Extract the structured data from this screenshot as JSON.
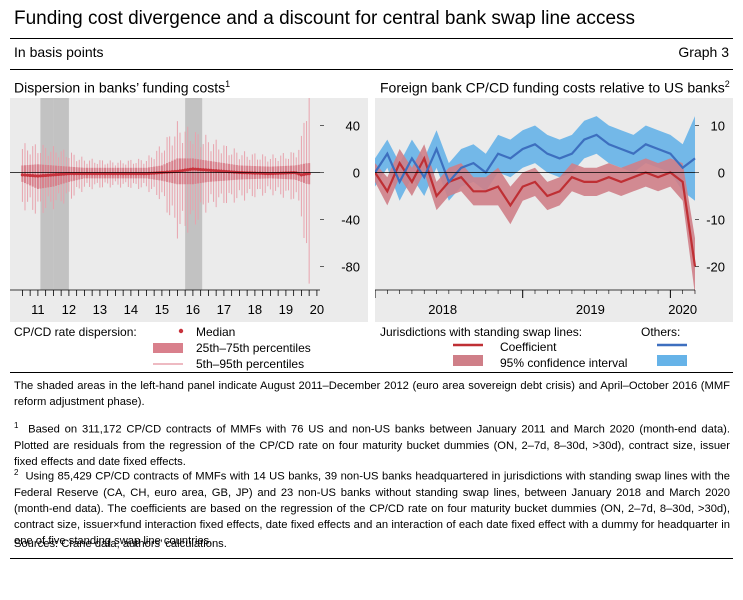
{
  "header": {
    "title": "Funding cost divergence and a discount for central bank swap line access",
    "subtitle": "In basis points",
    "graph_label": "Graph 3"
  },
  "left_panel": {
    "title": "Dispersion in banks’ funding costs",
    "title_sup": "1",
    "legend_heading": "CP/CD rate dispersion:",
    "legend_median": "Median",
    "legend_iqr": "25th–75th percentiles",
    "legend_p595": "5th–95th percentiles"
  },
  "right_panel": {
    "title": "Foreign bank CP/CD funding costs relative to US banks",
    "title_sup": "2",
    "legend_heading": "Jurisdictions with standing swap lines:",
    "legend_others": "Others:",
    "legend_coef": "Coefficient",
    "legend_ci": "95% confidence interval"
  },
  "notes": {
    "shaded": "The shaded areas in the left-hand panel indicate August 2011–December 2012 (euro area sovereign debt crisis) and April–October 2016 (MMF reform adjustment phase).",
    "fn1_num": "1",
    "fn1": "Based on 311,172 CP/CD contracts of MMFs with 76 US and non-US banks between January 2011 and March 2020 (month-end data). Plotted are residuals from the regression of the CP/CD rate on four maturity bucket dummies (ON, 2–7d, 8–30d, >30d), contract size, issuer fixed effects and date fixed effects.",
    "fn2_num": "2",
    "fn2": "Using 85,429 CP/CD contracts of MMFs with 14 US banks, 39 non-US banks headquartered in jurisdictions with standing swap lines with the Federal Reserve (CA, CH, euro area, GB, JP) and 23 non-US banks without standing swap lines, between January 2018 and March 2020 (month-end data). The coefficients are based on the regression of the CP/CD rate on four maturity bucket dummies (ON, 2–7d, 8–30d, >30d), contract size, issuer×fund interaction fixed effects, date fixed effects and an interaction of each date fixed effect with a dummy for headquarter in one of five standing swap line countries.",
    "sources": "Sources: Crane data; authors’ calculations."
  },
  "colors": {
    "panel_bg": "#ebebeb",
    "shade": "#c2c2c2",
    "median_red": "#c8323c",
    "iqr_pink": "#d9808c",
    "p595_pink": "#e8a3ad",
    "swap_red": "#bf2f34",
    "swap_ci": "#cf7f88",
    "others_blue": "#3d6fbf",
    "others_ci": "#66b3e8"
  },
  "chart_data": [
    {
      "type": "area",
      "title": "Dispersion in banks’ funding costs",
      "ylabel": "",
      "ylim": [
        -100,
        60
      ],
      "y_ticks": [
        40,
        0,
        -40,
        -80
      ],
      "x_range": [
        2010.6,
        2020.6
      ],
      "x_ticks": [
        "11",
        "12",
        "13",
        "14",
        "15",
        "16",
        "17",
        "18",
        "19",
        "20"
      ],
      "shaded_periods": [
        [
          2011.58,
          2012.0
        ],
        [
          2012.0,
          2012.5
        ],
        [
          2016.25,
          2016.8
        ]
      ],
      "series": [
        {
          "name": "Median",
          "x": [
            2011.0,
            2011.5,
            2012.0,
            2012.5,
            2013.0,
            2014.0,
            2015.0,
            2015.5,
            2016.0,
            2016.5,
            2017.0,
            2018.0,
            2019.0,
            2019.8,
            2020.0,
            2020.2
          ],
          "values": [
            -2,
            -3,
            -2,
            -1,
            -1,
            -1,
            -1,
            0,
            1,
            3,
            2,
            0,
            -1,
            0,
            -2,
            -1
          ]
        },
        {
          "name": "25th–75th percentiles",
          "x": [
            2011.0,
            2011.5,
            2012.0,
            2012.5,
            2013.0,
            2014.0,
            2015.0,
            2015.5,
            2016.0,
            2016.5,
            2017.0,
            2018.0,
            2019.0,
            2019.8,
            2020.2
          ],
          "low": [
            -8,
            -14,
            -12,
            -8,
            -5,
            -5,
            -5,
            -7,
            -10,
            -10,
            -8,
            -6,
            -5,
            -6,
            -10
          ],
          "high": [
            6,
            7,
            6,
            5,
            4,
            4,
            4,
            6,
            12,
            12,
            10,
            6,
            5,
            6,
            8
          ]
        },
        {
          "name": "5th–95th percentiles",
          "x": [
            2011.0,
            2011.5,
            2012.0,
            2012.5,
            2013.0,
            2014.0,
            2015.0,
            2015.5,
            2016.0,
            2016.5,
            2017.0,
            2018.0,
            2019.0,
            2019.8,
            2020.0,
            2020.2
          ],
          "low": [
            -25,
            -30,
            -25,
            -20,
            -12,
            -10,
            -12,
            -20,
            -45,
            -40,
            -25,
            -20,
            -15,
            -20,
            -30,
            -90
          ],
          "high": [
            20,
            20,
            18,
            15,
            10,
            8,
            10,
            20,
            35,
            30,
            25,
            15,
            12,
            15,
            25,
            65
          ]
        }
      ],
      "grid": false,
      "legend_position": "bottom"
    },
    {
      "type": "line",
      "title": "Foreign bank CP/CD funding costs relative to US banks",
      "ylabel": "",
      "ylim": [
        -25,
        15
      ],
      "y_ticks": [
        10,
        0,
        -10,
        -20
      ],
      "x_range": [
        "2018-01",
        "2020-03"
      ],
      "x_ticks": [
        "2018",
        "2019",
        "2020"
      ],
      "x": [
        "2018-01",
        "2018-02",
        "2018-03",
        "2018-04",
        "2018-05",
        "2018-06",
        "2018-07",
        "2018-08",
        "2018-09",
        "2018-10",
        "2018-11",
        "2018-12",
        "2019-01",
        "2019-02",
        "2019-03",
        "2019-04",
        "2019-05",
        "2019-06",
        "2019-07",
        "2019-08",
        "2019-09",
        "2019-10",
        "2019-11",
        "2019-12",
        "2020-01",
        "2020-02",
        "2020-03"
      ],
      "series": [
        {
          "name": "Jurisdictions with standing swap lines – Coefficient",
          "values": [
            0,
            -4,
            2,
            -2,
            3,
            -5,
            -2,
            -1,
            -4,
            -4,
            -3,
            -7,
            -3,
            -2,
            -5,
            -4,
            -1,
            -2,
            -2,
            -1,
            -2,
            -1,
            0,
            -1,
            0,
            -2,
            -20
          ],
          "ci_low": [
            -2,
            -7,
            -1,
            -5,
            0,
            -8,
            -5,
            -4,
            -7,
            -7,
            -7,
            -11,
            -6,
            -5,
            -8,
            -7,
            -4,
            -5,
            -5,
            -4,
            -5,
            -4,
            -3,
            -4,
            -3,
            -6,
            -26
          ],
          "ci_high": [
            2,
            -1,
            5,
            1,
            6,
            -2,
            1,
            2,
            -1,
            -1,
            1,
            -3,
            0,
            1,
            -2,
            -1,
            2,
            1,
            1,
            2,
            1,
            2,
            3,
            2,
            3,
            2,
            -14
          ]
        },
        {
          "name": "Others – Coefficient",
          "values": [
            0,
            4,
            -2,
            3,
            -1,
            5,
            -2,
            1,
            2,
            0,
            4,
            3,
            5,
            6,
            4,
            3,
            4,
            7,
            8,
            6,
            5,
            4,
            6,
            5,
            4,
            1,
            3
          ],
          "ci_low": [
            -3,
            1,
            -6,
            -1,
            -5,
            1,
            -6,
            -3,
            -2,
            -4,
            0,
            -1,
            1,
            2,
            0,
            -1,
            0,
            3,
            4,
            2,
            1,
            0,
            2,
            1,
            0,
            -4,
            -6
          ],
          "ci_high": [
            3,
            7,
            2,
            7,
            3,
            9,
            2,
            5,
            6,
            4,
            8,
            7,
            9,
            10,
            8,
            7,
            8,
            11,
            12,
            10,
            9,
            8,
            10,
            9,
            8,
            6,
            12
          ]
        }
      ],
      "grid": false,
      "legend_position": "bottom"
    }
  ]
}
